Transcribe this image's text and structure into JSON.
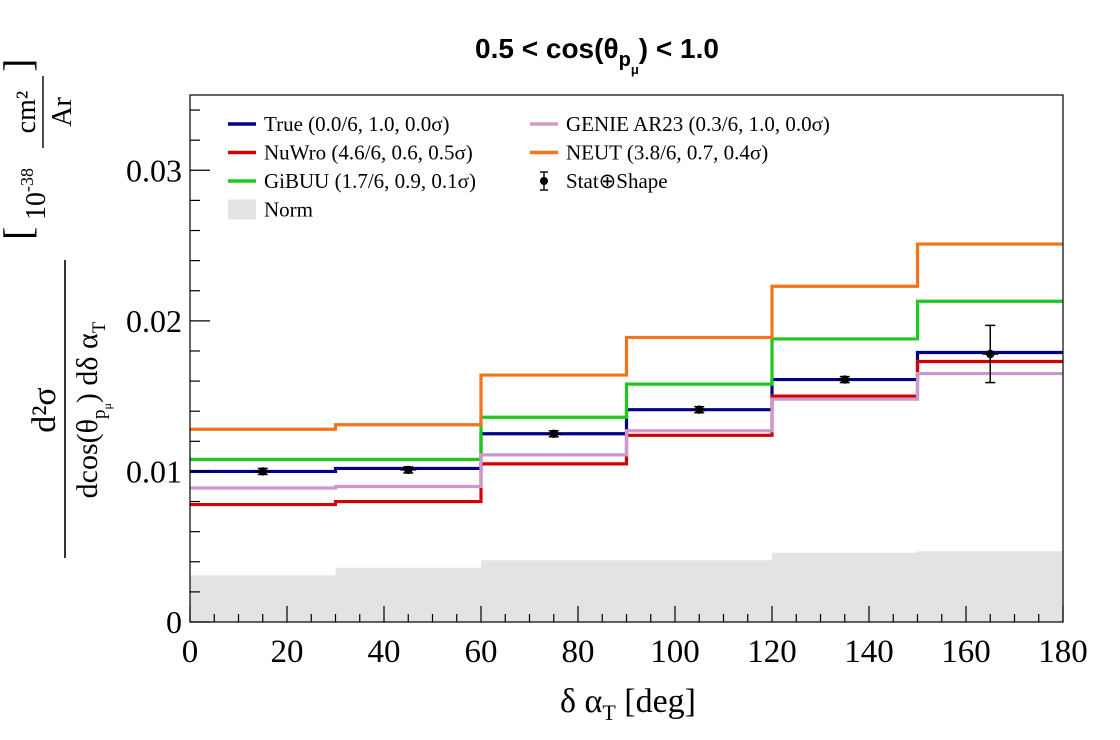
{
  "chart_data": {
    "type": "line",
    "title": {
      "prefix": "0.5 < cos(θ",
      "sub": "p",
      "subsub": "μ",
      "suffix": ") < 1.0"
    },
    "xlabel": {
      "main": "δ α",
      "sub": "T",
      "unit": " [deg]"
    },
    "ylabel": {
      "num": "d²σ",
      "den_prefix": "dcos(θ",
      "den_sub": "p",
      "den_subsub": "μ",
      "den_suffix": ") dδ α",
      "den_sub2": "T",
      "unit_prefix": "10",
      "unit_exp": "-38",
      "unit_num": "cm²",
      "unit_den": "Ar"
    },
    "xlim": [
      0,
      180
    ],
    "ylim": [
      0,
      0.035
    ],
    "x_ticks": [
      0,
      20,
      40,
      60,
      80,
      100,
      120,
      140,
      160,
      180
    ],
    "y_ticks": [
      0,
      0.01,
      0.02,
      0.03
    ],
    "y_tick_labels": [
      "0",
      "0.01",
      "0.02",
      "0.03"
    ],
    "bin_edges": [
      0,
      30,
      60,
      90,
      120,
      150,
      180
    ],
    "grid": false,
    "legend_position": "top-left",
    "norm": {
      "name": "Norm",
      "color": "#e3e3e3",
      "values": [
        0.0031,
        0.0036,
        0.0041,
        0.0041,
        0.0046,
        0.0047
      ]
    },
    "series": [
      {
        "name": "True (0.0/6, 1.0, 0.0σ)",
        "color": "#00008b",
        "values": [
          0.01,
          0.0102,
          0.0125,
          0.0141,
          0.0161,
          0.0179
        ]
      },
      {
        "name": "NuWro (4.6/6, 0.6, 0.5σ)",
        "color": "#d40000",
        "values": [
          0.0078,
          0.008,
          0.0105,
          0.0124,
          0.015,
          0.0173
        ]
      },
      {
        "name": "GiBUU (1.7/6, 0.9, 0.1σ)",
        "color": "#1ec81e",
        "values": [
          0.0108,
          0.0108,
          0.0136,
          0.0158,
          0.0188,
          0.0213
        ]
      },
      {
        "name": "GENIE AR23 (0.3/6, 1.0, 0.0σ)",
        "color": "#cc99cc",
        "values": [
          0.0089,
          0.009,
          0.0111,
          0.0127,
          0.0148,
          0.0165
        ]
      },
      {
        "name": "NEUT (3.8/6, 0.7, 0.4σ)",
        "color": "#f47418",
        "values": [
          0.0128,
          0.0131,
          0.0164,
          0.0189,
          0.0223,
          0.0251
        ]
      }
    ],
    "data_points": {
      "name": "Stat⊕Shape",
      "color": "#000000",
      "x": [
        15,
        45,
        75,
        105,
        135,
        165
      ],
      "y": [
        0.01,
        0.0101,
        0.0125,
        0.0141,
        0.0161,
        0.0178
      ],
      "err": [
        0.0002,
        0.0002,
        0.0002,
        0.0002,
        0.0002,
        0.0019
      ]
    },
    "legend_order": [
      "True (0.0/6, 1.0, 0.0σ)",
      "GENIE AR23 (0.3/6, 1.0, 0.0σ)",
      "NuWro (4.6/6, 0.6, 0.5σ)",
      "NEUT (3.8/6, 0.7, 0.4σ)",
      "GiBUU (1.7/6, 0.9, 0.1σ)",
      "Stat⊕Shape",
      "Norm"
    ]
  }
}
